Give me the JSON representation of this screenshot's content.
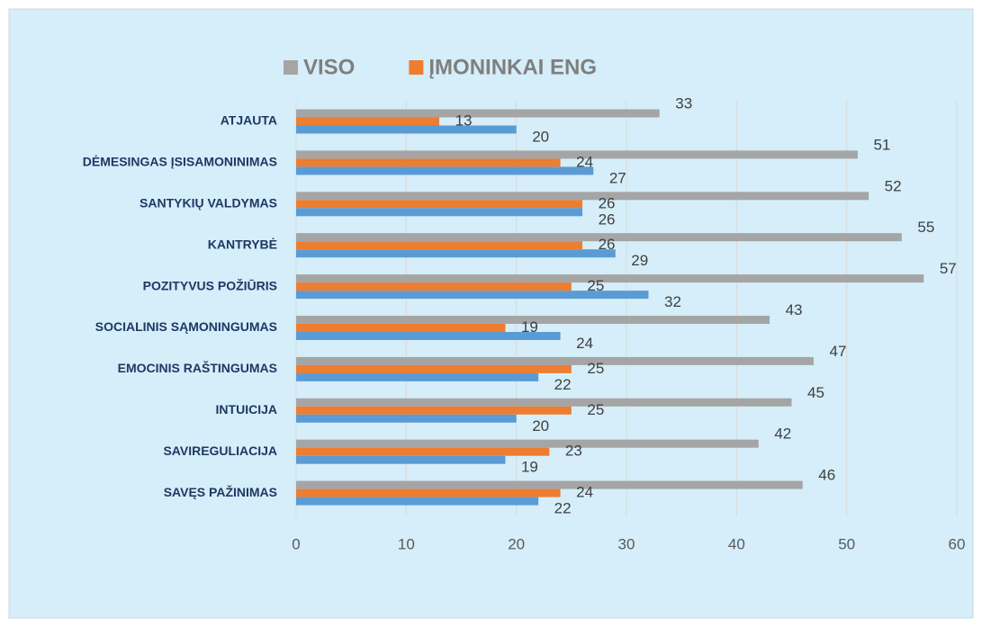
{
  "chart_data": {
    "type": "hbar",
    "categories": [
      "ATJAUTA",
      "DĖMESINGAS ĮSISAMONINIMAS",
      "SANTYKIŲ VALDYMAS",
      "KANTRYBĖ",
      "POZITYVUS POŽIŪRIS",
      "SOCIALINIS SĄMONINGUMAS",
      "EMOCINIS RAŠTINGUMAS",
      "INTUICIJA",
      "SAVIREGULIACIJA",
      "SAVĘS PAŽINIMAS"
    ],
    "series": [
      {
        "name": "VISO",
        "color": "#a5a5a5",
        "values": [
          33,
          51,
          52,
          55,
          57,
          43,
          47,
          45,
          42,
          46
        ]
      },
      {
        "name": "ĮMONINKAI ENG",
        "color": "#ed7d31",
        "values": [
          13,
          24,
          26,
          26,
          25,
          19,
          25,
          25,
          23,
          24
        ]
      },
      {
        "color": "#5b9bd5",
        "values": [
          20,
          27,
          26,
          29,
          32,
          24,
          22,
          20,
          19,
          22
        ]
      }
    ],
    "xlim": [
      0,
      60
    ],
    "xticks": [
      0,
      10,
      20,
      30,
      40,
      50,
      60
    ],
    "grid": true,
    "legend": "top"
  }
}
